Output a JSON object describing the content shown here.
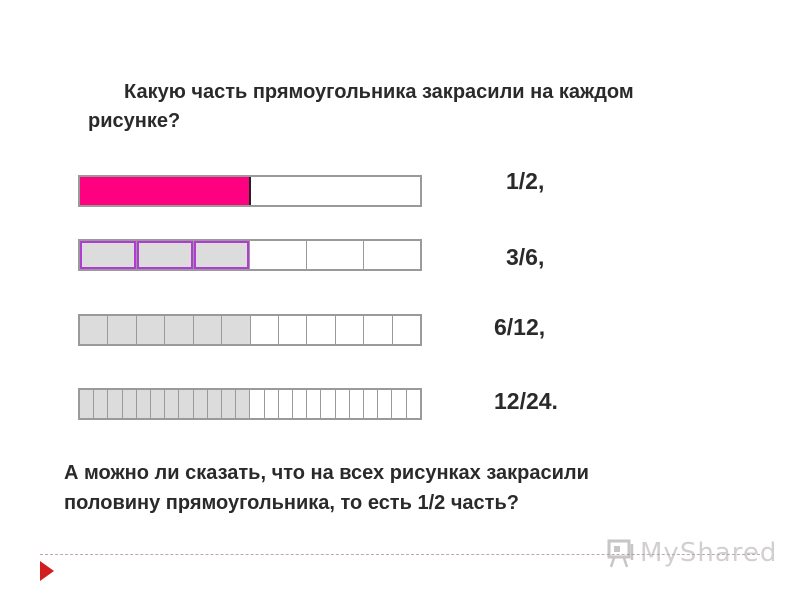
{
  "question": "Какую часть прямоугольника закрасили на каждом рисунке?",
  "rows": [
    {
      "fraction_label": "1/2,",
      "parts": 2,
      "shaded": 1,
      "style": "fill"
    },
    {
      "fraction_label": "3/6,",
      "parts": 6,
      "shaded": 3,
      "style": "highlight"
    },
    {
      "fraction_label": "6/12,",
      "parts": 12,
      "shaded": 6,
      "style": "shade"
    },
    {
      "fraction_label": "12/24.",
      "parts": 24,
      "shaded": 12,
      "style": "shade"
    }
  ],
  "answer_question": "А можно  ли сказать, что на всех рисунках закрасили половину прямоугольника, то есть 1/2 часть?",
  "colors": {
    "fill": "#ff0080",
    "highlight": "#b23bd6",
    "arrow": "#d21e1e"
  },
  "footer_logo_text": "MyShared"
}
